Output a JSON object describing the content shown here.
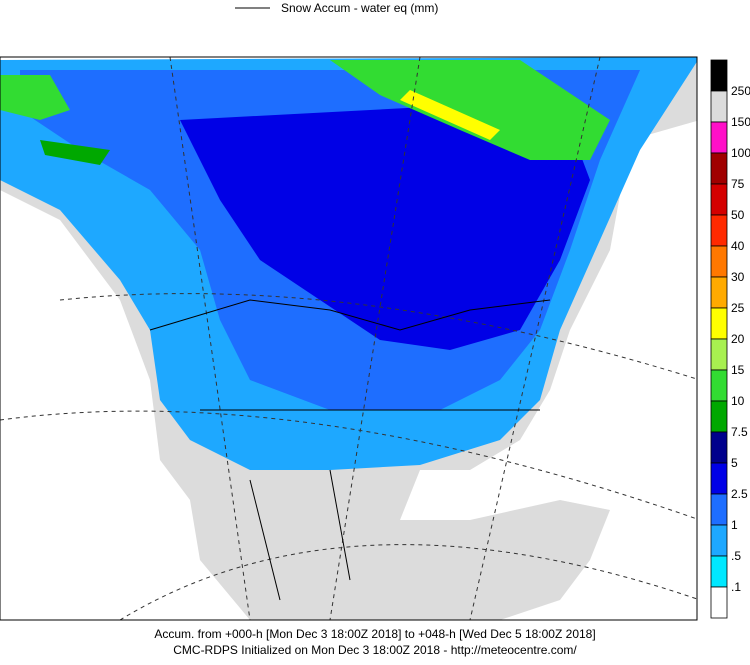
{
  "header": {
    "title": "Snow Accum - water eq (mm)"
  },
  "legend": {
    "labels": [
      "250",
      "150",
      "100",
      "75",
      "50",
      "40",
      "30",
      "25",
      "20",
      "15",
      "10",
      "7.5",
      "5",
      "2.5",
      "1",
      ".5",
      ".1"
    ],
    "colors": [
      "#000000",
      "#dcdcdc",
      "#ff10c8",
      "#a00000",
      "#d40000",
      "#ff2a00",
      "#ff7800",
      "#ffaa00",
      "#ffff00",
      "#a8f050",
      "#32dc32",
      "#00a800",
      "#00008c",
      "#0000e6",
      "#1e6eff",
      "#1ea8ff",
      "#00e8ff",
      "#ffffff"
    ]
  },
  "footer": {
    "line1": "Accum. from +000-h [Mon Dec 3 18:00Z 2018] to +048-h [Wed Dec 5 18:00Z 2018]",
    "line2": "CMC-RDPS Initialized on Mon Dec 3 18:00Z 2018 - http://meteocentre.com/"
  }
}
